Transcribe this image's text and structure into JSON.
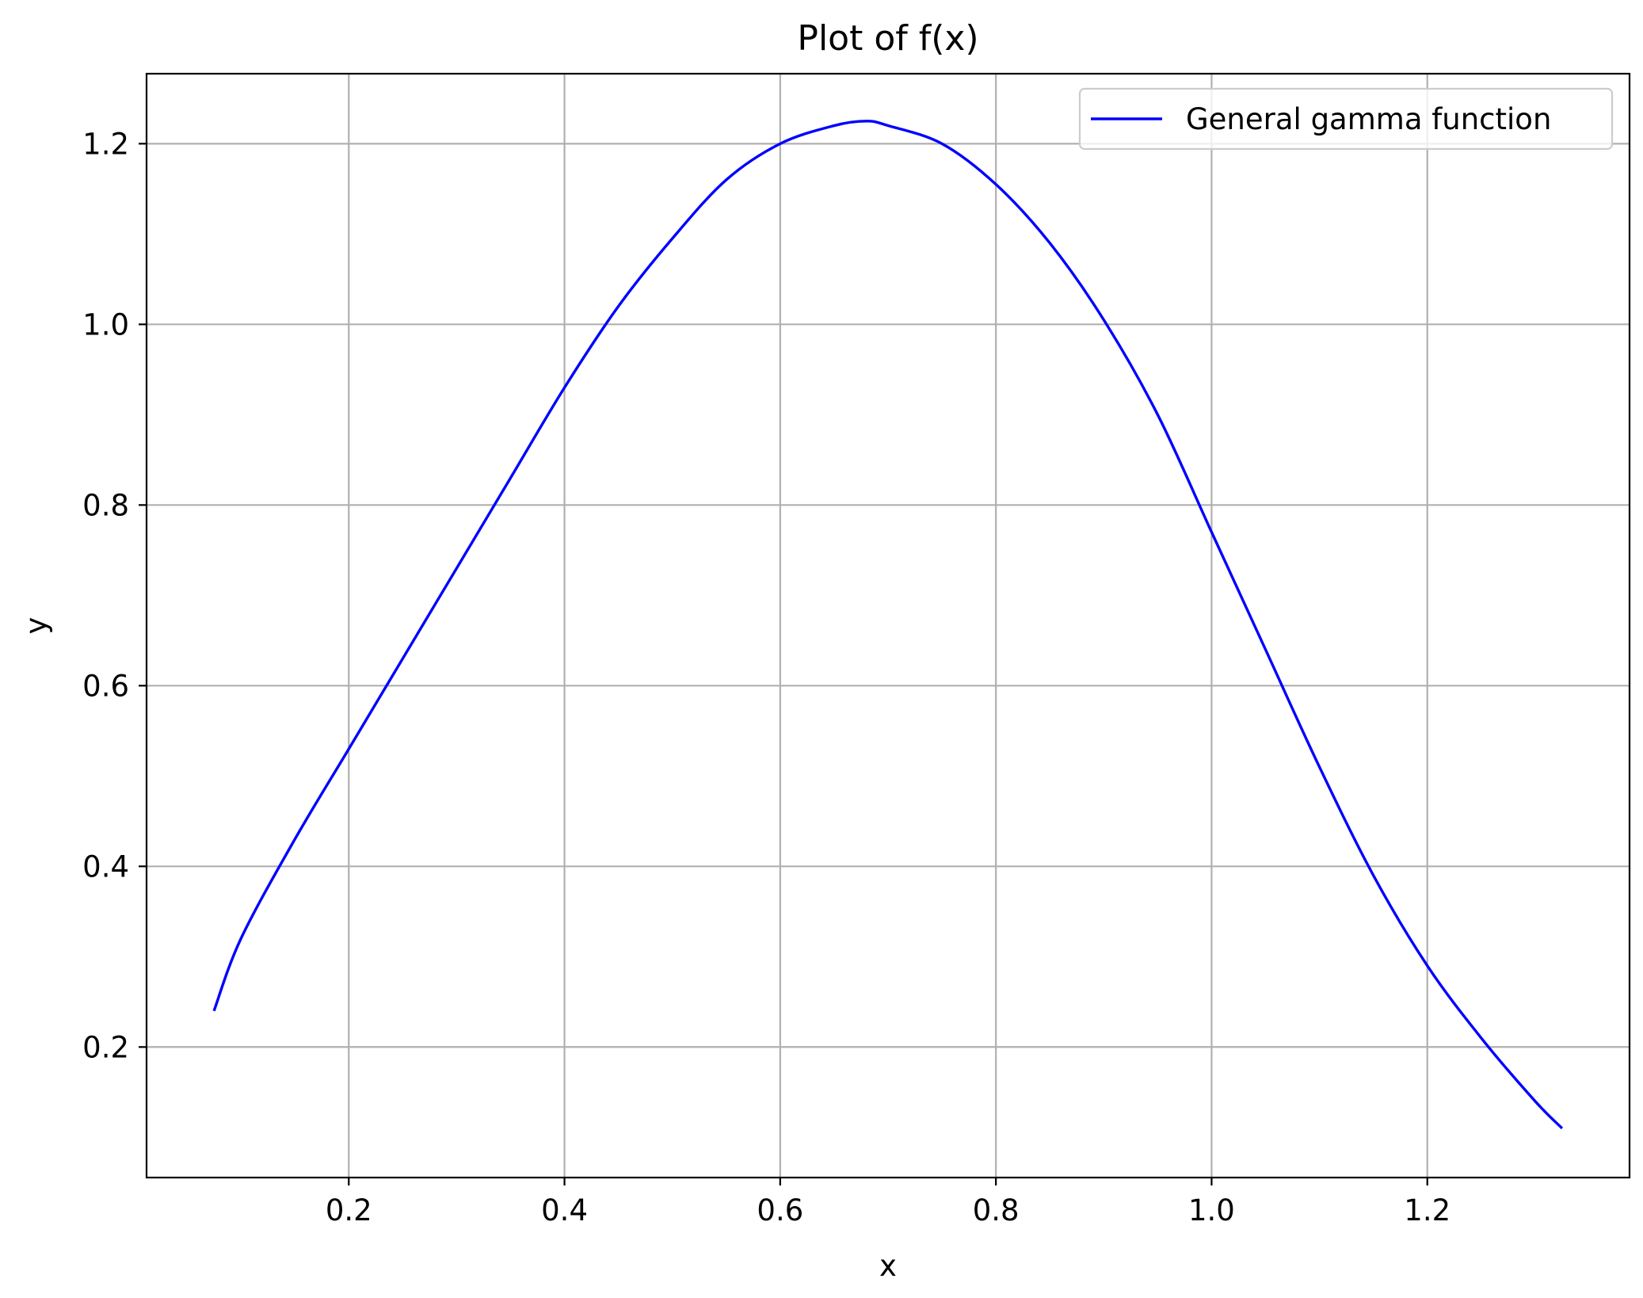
{
  "chart_data": {
    "type": "line",
    "title": "Plot of f(x)",
    "xlabel": "x",
    "ylabel": "y",
    "xlim": [
      0.0125,
      1.3875
    ],
    "ylim": [
      0.0555,
      1.2775
    ],
    "xticks": [
      0.2,
      0.4,
      0.6,
      0.8,
      1.0,
      1.2
    ],
    "xtick_labels": [
      "0.2",
      "0.4",
      "0.6",
      "0.8",
      "1.0",
      "1.2"
    ],
    "yticks": [
      0.2,
      0.4,
      0.6,
      0.8,
      1.0,
      1.2
    ],
    "ytick_labels": [
      "0.2",
      "0.4",
      "0.6",
      "0.8",
      "1.0",
      "1.2"
    ],
    "grid": true,
    "legend_position": "top-right",
    "series": [
      {
        "name": "General gamma function",
        "color": "#0000ff",
        "x": [
          0.075,
          0.1,
          0.15,
          0.2,
          0.25,
          0.3,
          0.35,
          0.4,
          0.45,
          0.5,
          0.55,
          0.6,
          0.65,
          0.68,
          0.7,
          0.75,
          0.8,
          0.85,
          0.9,
          0.95,
          1.0,
          1.05,
          1.1,
          1.15,
          1.2,
          1.25,
          1.3,
          1.325
        ],
        "y": [
          0.24,
          0.32,
          0.43,
          0.53,
          0.63,
          0.73,
          0.83,
          0.93,
          1.02,
          1.095,
          1.16,
          1.2,
          1.22,
          1.225,
          1.22,
          1.2,
          1.155,
          1.09,
          1.005,
          0.9,
          0.77,
          0.64,
          0.51,
          0.39,
          0.29,
          0.21,
          0.14,
          0.11
        ]
      }
    ]
  }
}
